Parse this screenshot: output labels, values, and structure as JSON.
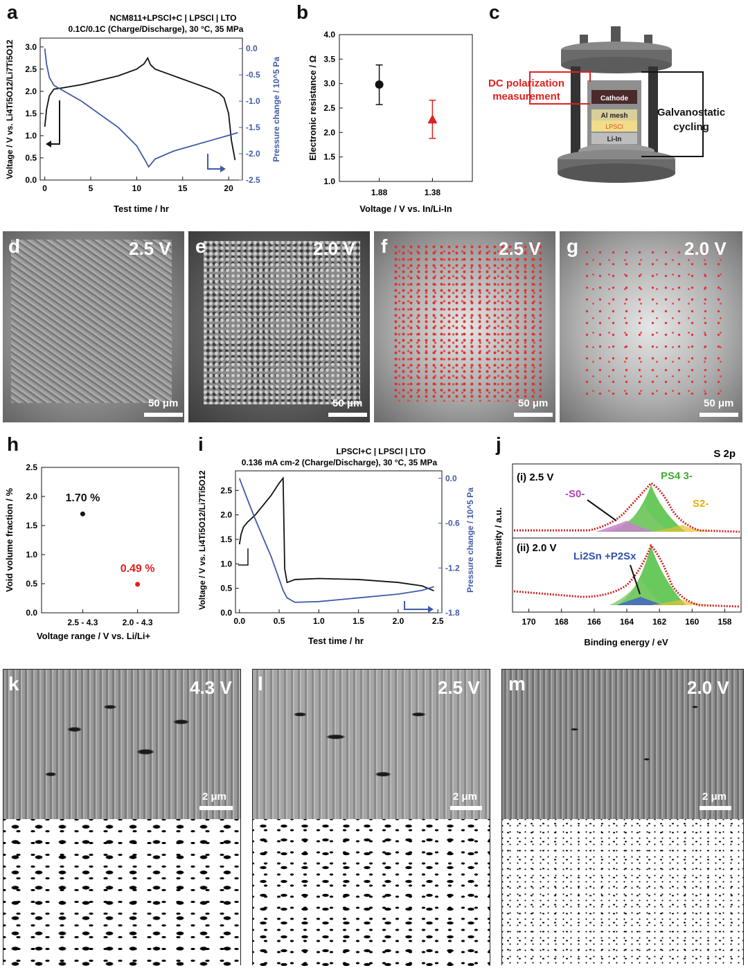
{
  "panels": {
    "a": {
      "letter": "a",
      "title1": "NCM811+LPSCl+C | LPSCl | LTO",
      "title2": "0.1C/0.1C (Charge/Discharge), 30 °C, 35 MPa",
      "xlabel": "Test time / hr",
      "ylabel_left": "Voltage / V vs. Li4Ti5O12/Li7Ti5O12",
      "ylabel_right": "Pressure change / 10^5 Pa",
      "xticks": [
        "0",
        "5",
        "10",
        "15",
        "20"
      ],
      "yticks_left": [
        "0.0",
        "0.5",
        "1.0",
        "1.5",
        "2.0",
        "2.5",
        "3.0"
      ],
      "yticks_right": [
        "0.0",
        "-0.5",
        "-1.0",
        "-1.5",
        "-2.0",
        "-2.5"
      ],
      "colors": {
        "voltage": "#111111",
        "pressure": "#3f5aa8"
      }
    },
    "b": {
      "letter": "b",
      "xlabel": "Voltage / V vs. In/Li-In",
      "ylabel": "Electronic resistance / Ω",
      "categories": [
        "1.88",
        "1.38"
      ],
      "yticks": [
        "1.0",
        "1.5",
        "2.0",
        "2.5",
        "3.0",
        "3.5",
        "4.0"
      ]
    },
    "c": {
      "letter": "c",
      "left_label": "DC polarization measurement",
      "right_label": "Galvanostatic cycling",
      "stack": [
        "Cathode",
        "Al mesh",
        "LPSCl",
        "Li-In"
      ]
    },
    "micro": {
      "d": {
        "letter": "d",
        "voltage": "2.5 V",
        "scale": "50 μm"
      },
      "e": {
        "letter": "e",
        "voltage": "2.0 V",
        "scale": "50 μm"
      },
      "f": {
        "letter": "f",
        "voltage": "2.5 V",
        "scale": "50 μm"
      },
      "g": {
        "letter": "g",
        "voltage": "2.0 V",
        "scale": "50 μm"
      }
    },
    "h": {
      "letter": "h",
      "xlabel": "Voltage range / V vs. Li/Li+",
      "ylabel": "Void volume fraction / %",
      "categories": [
        "2.5 - 4.3",
        "2.0 - 4.3"
      ],
      "yticks": [
        "0.0",
        "0.5",
        "1.0",
        "1.5",
        "2.0",
        "2.5"
      ],
      "labels": [
        "1.70 %",
        "0.49 %"
      ]
    },
    "i": {
      "letter": "i",
      "title1": "LPSCl+C | LPSCl | LTO",
      "title2": "0.136 mA cm-2 (Charge/Discharge), 30 °C, 35 MPa",
      "xlabel": "Test time / hr",
      "ylabel_left": "Voltage / V vs. Li4Ti5O12/Li7Ti5O12",
      "ylabel_right": "Pressure change / 10^5 Pa",
      "xticks": [
        "0.0",
        "0.5",
        "1.0",
        "1.5",
        "2.0",
        "2.5"
      ],
      "yticks_left": [
        "0.0",
        "0.5",
        "1.0",
        "1.5",
        "2.0",
        "2.5"
      ],
      "yticks_right": [
        "0.0",
        "-0.6",
        "-1.2",
        "-1.8"
      ]
    },
    "j": {
      "letter": "j",
      "title": "S 2p",
      "xlabel": "Binding energy / eV",
      "ylabel": "Intensity / a.u.",
      "xticks": [
        "170",
        "168",
        "166",
        "164",
        "162",
        "160",
        "158"
      ],
      "top_label": "(i)  2.5 V",
      "bottom_label": "(ii)  2.0 V",
      "s0": "-S0-",
      "ps4": "PS4 3-",
      "s2": "S2-",
      "lisn": "Li2Sn +P2Sx"
    },
    "sem": {
      "k": {
        "letter": "k",
        "voltage": "4.3 V",
        "scale": "2 μm"
      },
      "l": {
        "letter": "l",
        "voltage": "2.5 V",
        "scale": "2 μm"
      },
      "m": {
        "letter": "m",
        "voltage": "2.0 V",
        "scale": "2 μm"
      }
    }
  },
  "chart_data": [
    {
      "type": "line",
      "panel": "a",
      "title": "NCM811+LPSCl+C | LPSCl | LTO",
      "subtitle": "0.1C/0.1C (Charge/Discharge), 30 °C, 35 MPa",
      "xlabel": "Test time / hr",
      "ylabel": "Voltage / V vs. Li4Ti5O12/Li7Ti5O12",
      "y2label": "Pressure change / 10^5 Pa",
      "xlim": [
        -0.5,
        21.5
      ],
      "ylim": [
        0,
        3.2
      ],
      "y2lim": [
        -2.5,
        0.2
      ],
      "series": [
        {
          "axis": "left",
          "x": [
            0,
            0.2,
            0.5,
            1,
            2,
            4,
            6,
            8,
            10,
            10.8,
            11.2,
            11.5,
            12,
            14,
            16,
            18,
            19,
            19.5,
            20,
            20.3,
            20.7
          ],
          "values": [
            1.2,
            1.6,
            1.9,
            2.05,
            2.08,
            2.15,
            2.25,
            2.35,
            2.5,
            2.62,
            2.75,
            2.6,
            2.5,
            2.35,
            2.2,
            2.05,
            1.95,
            1.85,
            1.5,
            0.9,
            0.45
          ]
        },
        {
          "axis": "right",
          "x": [
            0,
            0.2,
            0.5,
            1,
            2,
            4,
            6,
            8,
            10,
            11,
            11.3,
            12,
            14,
            16,
            18,
            20,
            21
          ],
          "values": [
            0.0,
            -0.3,
            -0.55,
            -0.7,
            -0.8,
            -1.0,
            -1.25,
            -1.5,
            -1.85,
            -2.15,
            -2.25,
            -2.1,
            -1.95,
            -1.85,
            -1.75,
            -1.65,
            -1.6
          ]
        }
      ]
    },
    {
      "type": "scatter",
      "panel": "b",
      "xlabel": "Voltage / V vs. In/Li-In",
      "ylabel": "Electronic resistance / Ω",
      "categories": [
        "1.88",
        "1.38"
      ],
      "values": [
        2.98,
        2.27
      ],
      "errors": [
        [
          2.57,
          3.38
        ],
        [
          1.88,
          2.66
        ]
      ],
      "ylim": [
        1.0,
        4.0
      ]
    },
    {
      "type": "scatter",
      "panel": "h",
      "xlabel": "Voltage range / V vs. Li/Li+",
      "ylabel": "Void volume fraction / %",
      "categories": [
        "2.5 - 4.3",
        "2.0 - 4.3"
      ],
      "values": [
        1.7,
        0.49
      ],
      "ylim": [
        0.0,
        2.5
      ]
    },
    {
      "type": "line",
      "panel": "i",
      "title": "LPSCl+C | LPSCl | LTO",
      "subtitle": "0.136 mA cm-2 (Charge/Discharge), 30 °C, 35 MPa",
      "xlabel": "Test time / hr",
      "ylabel": "Voltage / V vs. Li4Ti5O12/Li7Ti5O12",
      "y2label": "Pressure change / 10^5 Pa",
      "xlim": [
        -0.05,
        2.55
      ],
      "ylim": [
        0,
        2.9
      ],
      "y2lim": [
        -1.8,
        0.1
      ],
      "series": [
        {
          "axis": "left",
          "x": [
            0,
            0.02,
            0.05,
            0.1,
            0.2,
            0.3,
            0.4,
            0.5,
            0.55,
            0.57,
            0.6,
            0.7,
            1.0,
            1.5,
            2.0,
            2.3,
            2.45
          ],
          "values": [
            1.4,
            1.6,
            1.75,
            1.85,
            2.0,
            2.2,
            2.4,
            2.65,
            2.75,
            0.9,
            0.62,
            0.68,
            0.7,
            0.68,
            0.62,
            0.55,
            0.45
          ]
        },
        {
          "axis": "right",
          "x": [
            0,
            0.1,
            0.2,
            0.3,
            0.4,
            0.5,
            0.55,
            0.6,
            0.7,
            1.0,
            1.5,
            2.0,
            2.3,
            2.45
          ],
          "values": [
            0.0,
            -0.28,
            -0.55,
            -0.8,
            -1.05,
            -1.35,
            -1.5,
            -1.6,
            -1.66,
            -1.65,
            -1.6,
            -1.55,
            -1.5,
            -1.45
          ]
        }
      ]
    },
    {
      "type": "line",
      "panel": "j",
      "xlabel": "Binding energy / eV",
      "ylabel": "Intensity / a.u.",
      "xlim": [
        171,
        157
      ],
      "series": [
        {
          "name": "(i) 2.5 V",
          "x": [
            171,
            168,
            166,
            165,
            164,
            163.5,
            163,
            162.5,
            162,
            161.5,
            161,
            160,
            158,
            157
          ],
          "values": [
            0.05,
            0.05,
            0.08,
            0.15,
            0.35,
            0.6,
            0.75,
            0.9,
            1.0,
            0.7,
            0.35,
            0.12,
            0.05,
            0.05
          ]
        },
        {
          "name": "(ii) 2.0 V",
          "x": [
            171,
            168,
            166,
            165,
            164,
            163.5,
            163,
            162.5,
            162,
            161.5,
            161,
            160,
            158,
            157
          ],
          "values": [
            0.15,
            0.1,
            0.12,
            0.18,
            0.3,
            0.45,
            0.65,
            0.85,
            1.0,
            0.7,
            0.3,
            0.1,
            0.05,
            0.05
          ]
        }
      ]
    }
  ]
}
